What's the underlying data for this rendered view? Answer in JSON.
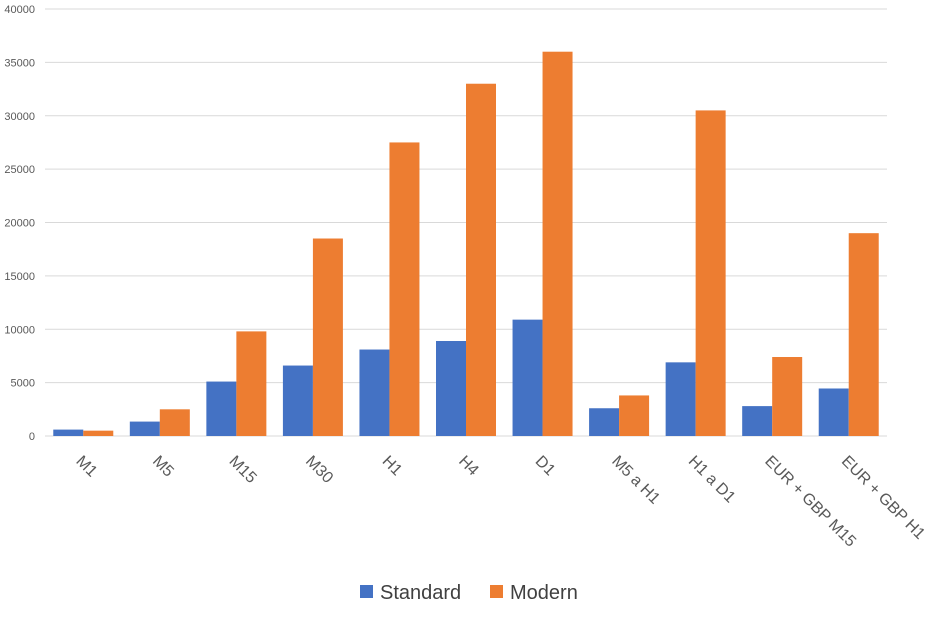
{
  "chart_data": {
    "type": "bar",
    "title": "",
    "xlabel": "",
    "ylabel": "",
    "ylim": [
      0,
      40000
    ],
    "yticks": [
      0,
      5000,
      10000,
      15000,
      20000,
      25000,
      30000,
      35000,
      40000
    ],
    "grid": true,
    "legend_position": "bottom",
    "categories": [
      "M1",
      "M5",
      "M15",
      "M30",
      "H1",
      "H4",
      "D1",
      "M5 a H1",
      "H1 a D1",
      "EUR + GBP M15",
      "EUR + GBP H1"
    ],
    "series": [
      {
        "name": "Standard",
        "color": "#4472c4",
        "values": [
          600,
          1350,
          5100,
          6600,
          8100,
          8900,
          10900,
          2600,
          6900,
          2800,
          4450
        ]
      },
      {
        "name": "Modern",
        "color": "#ed7d31",
        "values": [
          500,
          2500,
          9800,
          18500,
          27500,
          33000,
          36000,
          3800,
          30500,
          7400,
          19000
        ]
      }
    ]
  }
}
